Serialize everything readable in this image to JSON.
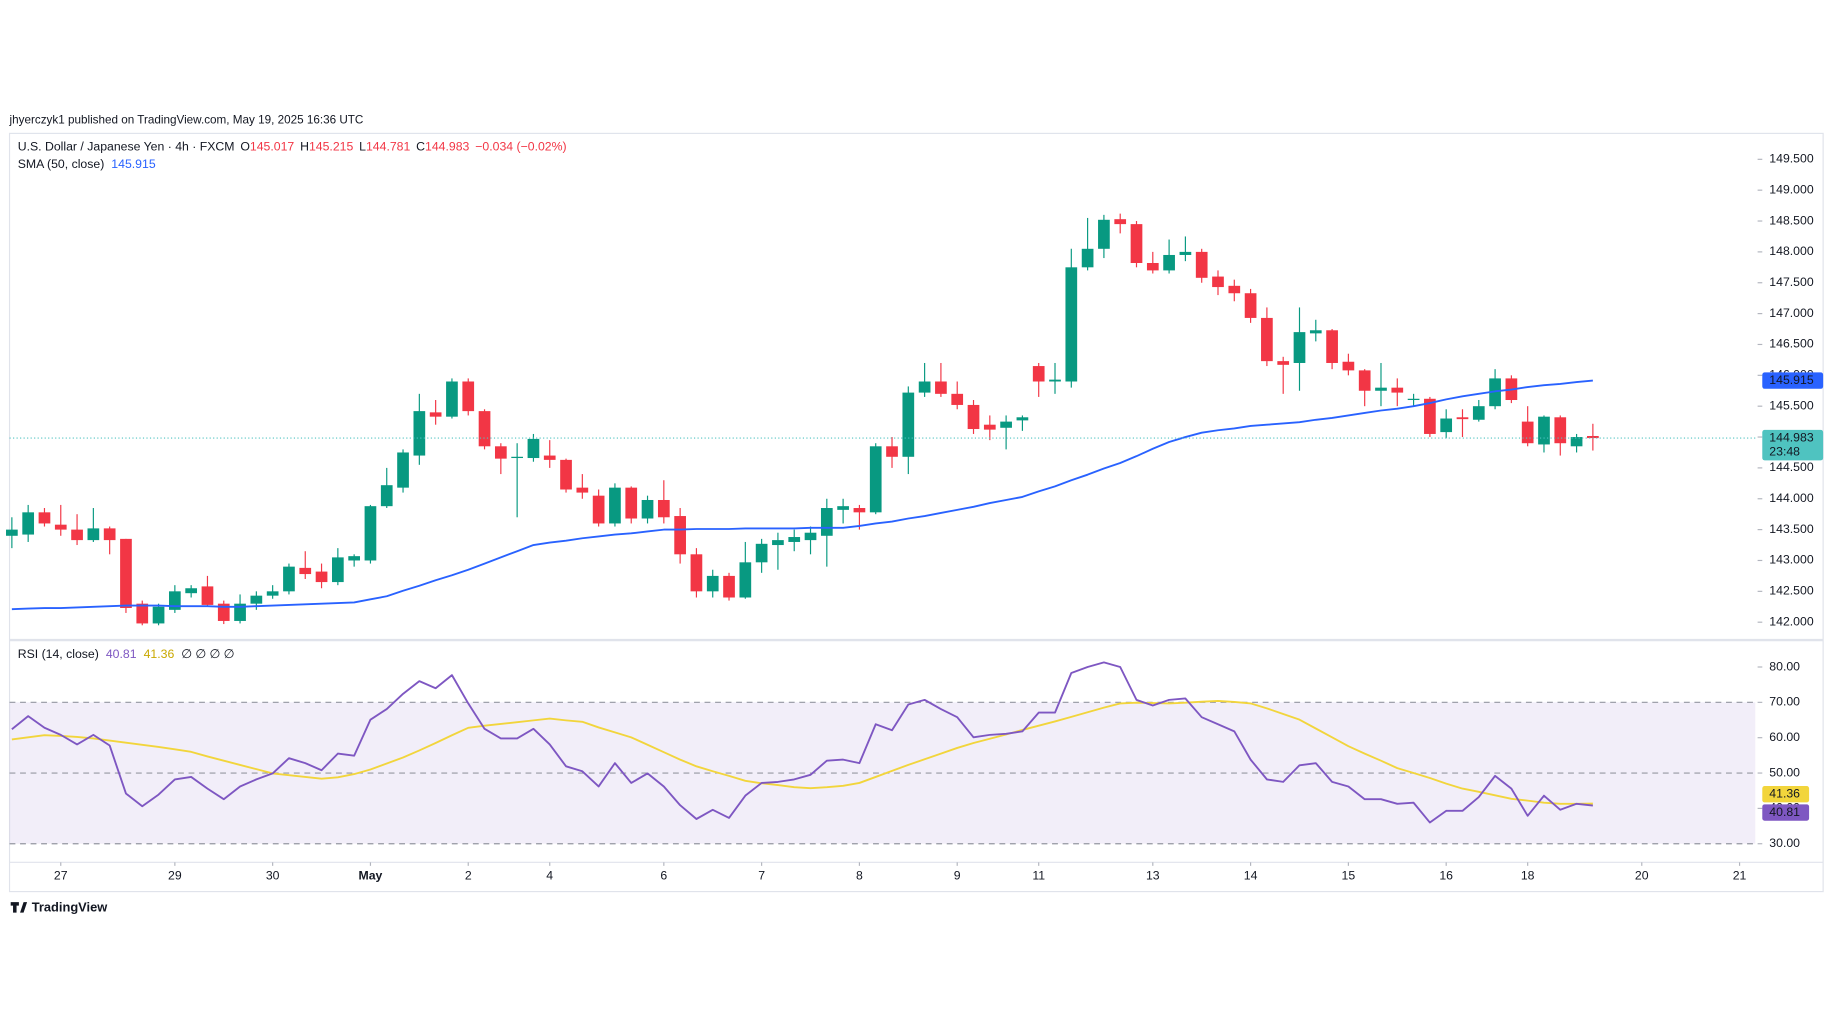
{
  "header": {
    "published": "jhyerczyk1 published on TradingView.com, May 19, 2025 16:36 UTC"
  },
  "chart_data": [
    {
      "type": "candlestick",
      "title": "U.S. Dollar / Japanese Yen · 4h · FXCM",
      "ohlc_letters": [
        "O",
        "H",
        "L",
        "C"
      ],
      "change": "−0.034 (−0.02%)",
      "up_color": "#089981",
      "down_color": "#f23645",
      "open": [
        143.4,
        143.42,
        143.78,
        143.58,
        143.5,
        143.33,
        143.52,
        143.35,
        142.3,
        141.98,
        142.2,
        142.47,
        142.58,
        142.3,
        142.02,
        142.3,
        142.43,
        142.5,
        142.88,
        142.82,
        142.65,
        143.0,
        143.0,
        143.88,
        144.18,
        144.7,
        145.4,
        145.33,
        145.9,
        145.42,
        144.85,
        144.66,
        144.66,
        144.7,
        144.63,
        144.18,
        144.05,
        143.6,
        144.18,
        143.68,
        143.98,
        143.72,
        143.1,
        142.5,
        142.75,
        142.4,
        142.97,
        143.25,
        143.3,
        143.33,
        143.4,
        143.82,
        143.85,
        143.78,
        144.85,
        144.68,
        145.72,
        145.9,
        145.7,
        145.52,
        145.2,
        145.15,
        145.27,
        146.15,
        145.9,
        145.9,
        147.75,
        148.05,
        148.53,
        148.45,
        147.82,
        147.7,
        147.95,
        148.0,
        147.6,
        147.45,
        147.33,
        146.93,
        146.23,
        146.2,
        146.68,
        146.73,
        146.22,
        146.08,
        145.75,
        145.8,
        145.6,
        145.62,
        145.08,
        145.32,
        145.28,
        145.5,
        145.95,
        145.25,
        144.88,
        145.32,
        144.85,
        145.017
      ],
      "high": [
        143.7,
        143.9,
        143.85,
        143.9,
        143.75,
        143.85,
        143.55,
        143.35,
        142.35,
        142.3,
        142.6,
        142.6,
        142.75,
        142.35,
        142.45,
        142.5,
        142.6,
        142.95,
        143.15,
        142.95,
        143.2,
        143.1,
        143.9,
        144.5,
        144.8,
        145.7,
        145.6,
        145.95,
        145.95,
        145.45,
        144.9,
        144.9,
        145.05,
        144.95,
        144.65,
        144.4,
        144.15,
        144.25,
        144.2,
        144.05,
        144.3,
        143.85,
        143.2,
        142.85,
        142.8,
        143.3,
        143.35,
        143.45,
        143.5,
        143.55,
        144.0,
        144.0,
        143.9,
        144.9,
        145.0,
        145.82,
        146.2,
        146.2,
        145.9,
        145.6,
        145.35,
        145.35,
        145.35,
        146.2,
        146.2,
        148.05,
        148.55,
        148.6,
        148.62,
        148.5,
        148.0,
        148.2,
        148.25,
        148.05,
        147.7,
        147.55,
        147.4,
        147.1,
        146.3,
        147.1,
        146.9,
        146.75,
        146.35,
        146.1,
        146.2,
        145.95,
        145.7,
        145.65,
        145.45,
        145.45,
        145.6,
        146.1,
        146.0,
        145.5,
        145.35,
        145.35,
        145.05,
        145.215
      ],
      "low": [
        143.2,
        143.3,
        143.55,
        143.4,
        143.25,
        143.3,
        143.1,
        142.15,
        141.95,
        141.95,
        142.15,
        142.4,
        142.25,
        141.97,
        141.98,
        142.2,
        142.38,
        142.45,
        142.7,
        142.55,
        142.6,
        142.9,
        142.95,
        143.85,
        144.1,
        144.55,
        145.2,
        145.3,
        145.35,
        144.8,
        144.4,
        143.7,
        144.6,
        144.5,
        144.1,
        144.0,
        143.55,
        143.55,
        143.6,
        143.6,
        143.6,
        142.95,
        142.4,
        142.4,
        142.35,
        142.38,
        142.8,
        142.85,
        143.15,
        143.1,
        142.9,
        143.6,
        143.5,
        143.75,
        144.5,
        144.4,
        145.65,
        145.65,
        145.45,
        145.05,
        144.95,
        144.8,
        145.1,
        145.65,
        145.7,
        145.8,
        147.7,
        147.9,
        148.3,
        147.75,
        147.65,
        147.65,
        147.85,
        147.5,
        147.3,
        147.2,
        146.85,
        146.15,
        145.7,
        145.75,
        146.55,
        146.1,
        146.0,
        145.5,
        145.5,
        145.5,
        145.5,
        145.0,
        144.98,
        145.0,
        145.25,
        145.45,
        145.55,
        144.85,
        144.75,
        144.7,
        144.75,
        144.781
      ],
      "close": [
        143.5,
        143.78,
        143.6,
        143.5,
        143.33,
        143.52,
        143.33,
        142.23,
        141.98,
        142.25,
        142.5,
        142.55,
        142.28,
        142.02,
        142.3,
        142.43,
        142.5,
        142.9,
        142.78,
        142.65,
        143.05,
        143.07,
        143.88,
        144.22,
        144.75,
        145.42,
        145.33,
        145.9,
        145.42,
        144.85,
        144.65,
        144.68,
        144.97,
        144.63,
        144.15,
        144.1,
        143.6,
        144.18,
        143.68,
        143.98,
        143.7,
        143.1,
        142.5,
        142.75,
        142.4,
        142.97,
        143.27,
        143.33,
        143.38,
        143.45,
        143.85,
        143.88,
        143.78,
        144.85,
        144.68,
        145.72,
        145.9,
        145.7,
        145.52,
        145.13,
        145.12,
        145.25,
        145.32,
        145.9,
        145.93,
        147.75,
        148.05,
        148.52,
        148.45,
        147.82,
        147.7,
        147.95,
        148.0,
        147.58,
        147.43,
        147.33,
        146.93,
        146.23,
        146.17,
        146.7,
        146.73,
        146.2,
        146.08,
        145.75,
        145.8,
        145.72,
        145.62,
        145.05,
        145.3,
        145.29,
        145.5,
        145.95,
        145.6,
        144.9,
        145.33,
        144.9,
        145.0,
        144.983
      ],
      "series": [
        {
          "name": "SMA (50, close)",
          "color": "#2962ff",
          "values": [
            142.21,
            142.22,
            142.23,
            142.23,
            142.24,
            142.25,
            142.26,
            142.27,
            142.27,
            142.27,
            142.26,
            142.26,
            142.26,
            142.25,
            142.25,
            142.26,
            142.27,
            142.28,
            142.29,
            142.3,
            142.31,
            142.32,
            142.37,
            142.42,
            142.51,
            142.59,
            142.68,
            142.76,
            142.85,
            142.95,
            143.05,
            143.15,
            143.25,
            143.29,
            143.32,
            143.36,
            143.39,
            143.42,
            143.44,
            143.47,
            143.5,
            143.5,
            143.51,
            143.51,
            143.51,
            143.52,
            143.52,
            143.52,
            143.52,
            143.53,
            143.53,
            143.53,
            143.56,
            143.6,
            143.63,
            143.68,
            143.72,
            143.77,
            143.82,
            143.87,
            143.93,
            143.98,
            144.03,
            144.12,
            144.2,
            144.3,
            144.39,
            144.49,
            144.58,
            144.69,
            144.81,
            144.92,
            145.0,
            145.07,
            145.11,
            145.14,
            145.18,
            145.2,
            145.22,
            145.24,
            145.28,
            145.31,
            145.35,
            145.39,
            145.43,
            145.46,
            145.5,
            145.55,
            145.61,
            145.66,
            145.7,
            145.74,
            145.77,
            145.81,
            145.84,
            145.86,
            145.89,
            145.915
          ]
        }
      ],
      "last_price_color": "#4fc3c0",
      "countdown": "23:48",
      "ylim": [
        141.73,
        149.92
      ],
      "yticks": [
        {
          "value": 142,
          "label": "142.000"
        },
        {
          "value": 142.5,
          "label": "142.500"
        },
        {
          "value": 143,
          "label": "143.000"
        },
        {
          "value": 143.5,
          "label": "143.500"
        },
        {
          "value": 144,
          "label": "144.000"
        },
        {
          "value": 144.5,
          "label": "144.500"
        },
        {
          "value": 145,
          "label": "145.000"
        },
        {
          "value": 145.5,
          "label": "145.500"
        },
        {
          "value": 146,
          "label": "146.000"
        },
        {
          "value": 146.5,
          "label": "146.500"
        },
        {
          "value": 147,
          "label": "147.000"
        },
        {
          "value": 147.5,
          "label": "147.500"
        },
        {
          "value": 148,
          "label": "148.000"
        },
        {
          "value": 148.5,
          "label": "148.500"
        },
        {
          "value": 149,
          "label": "149.000"
        },
        {
          "value": 149.5,
          "label": "149.500"
        }
      ],
      "xticks": [
        {
          "value": 3,
          "label": "27"
        },
        {
          "value": 10,
          "label": "29"
        },
        {
          "value": 16,
          "label": "30"
        },
        {
          "value": 22,
          "label": "May"
        },
        {
          "value": 28,
          "label": "2"
        },
        {
          "value": 33,
          "label": "4"
        },
        {
          "value": 40,
          "label": "6"
        },
        {
          "value": 46,
          "label": "7"
        },
        {
          "value": 52,
          "label": "8"
        },
        {
          "value": 58,
          "label": "9"
        },
        {
          "value": 63,
          "label": "11"
        },
        {
          "value": 70,
          "label": "13"
        },
        {
          "value": 76,
          "label": "14"
        },
        {
          "value": 82,
          "label": "15"
        },
        {
          "value": 88,
          "label": "16"
        },
        {
          "value": 93,
          "label": "18"
        },
        {
          "value": 100,
          "label": "20"
        },
        {
          "value": 106,
          "label": "21"
        }
      ]
    },
    {
      "type": "line",
      "title": "RSI (14, close)",
      "extra": "∅ ∅ ∅ ∅",
      "series": [
        {
          "color": "#7e57c2",
          "values": [
            62.4,
            66.1,
            62.8,
            60.8,
            58.1,
            60.8,
            57.8,
            44.2,
            40.6,
            43.9,
            48.2,
            48.9,
            45.6,
            42.6,
            46.2,
            48.2,
            49.9,
            54.2,
            52.8,
            50.8,
            55.5,
            54.9,
            65.1,
            68.1,
            72.4,
            76.0,
            74.0,
            77.7,
            69.7,
            62.5,
            59.8,
            59.8,
            62.5,
            58.1,
            51.9,
            50.5,
            46.2,
            52.8,
            47.2,
            49.9,
            46.2,
            40.9,
            37.0,
            39.6,
            37.3,
            43.6,
            47.2,
            47.5,
            48.2,
            49.5,
            53.5,
            53.8,
            52.8,
            63.8,
            62.1,
            69.4,
            70.7,
            68.1,
            65.8,
            60.1,
            60.8,
            61.1,
            61.8,
            67.1,
            67.1,
            78.3,
            80.0,
            81.3,
            80.0,
            70.7,
            69.1,
            70.7,
            71.1,
            65.8,
            63.8,
            61.8,
            53.8,
            48.2,
            47.5,
            52.2,
            52.8,
            47.5,
            46.2,
            42.6,
            42.6,
            41.3,
            41.6,
            36.0,
            39.3,
            39.3,
            43.2,
            49.2,
            45.6,
            37.9,
            43.6,
            39.6,
            41.3,
            40.81
          ]
        },
        {
          "color": "#f2d53c",
          "values": [
            59.5,
            60.1,
            60.7,
            60.5,
            60.2,
            59.8,
            59.2,
            58.6,
            58.0,
            57.4,
            56.7,
            56.0,
            54.7,
            53.5,
            52.3,
            51.1,
            49.9,
            49.4,
            48.9,
            48.4,
            48.8,
            49.7,
            51.0,
            52.7,
            54.4,
            56.4,
            58.5,
            60.7,
            62.8,
            63.4,
            63.9,
            64.4,
            64.9,
            65.4,
            64.9,
            64.5,
            62.9,
            61.5,
            60.1,
            58.0,
            55.9,
            53.8,
            51.9,
            50.5,
            49.2,
            47.8,
            47.1,
            46.6,
            46.0,
            45.7,
            46.0,
            46.4,
            47.2,
            48.9,
            50.6,
            52.3,
            53.9,
            55.5,
            57.1,
            58.5,
            59.7,
            60.9,
            62.2,
            63.4,
            64.6,
            65.9,
            67.2,
            68.5,
            69.7,
            69.9,
            69.8,
            69.7,
            69.9,
            70.2,
            70.4,
            70.1,
            69.7,
            68.3,
            66.7,
            65.1,
            62.6,
            60.1,
            57.6,
            55.5,
            53.5,
            51.4,
            50.0,
            48.6,
            47.0,
            45.6,
            44.7,
            43.7,
            42.7,
            42.2,
            41.6,
            41.3,
            41.3,
            41.36
          ]
        }
      ],
      "band": [
        30,
        70
      ],
      "midline": 50,
      "ylim": [
        25.4,
        87.3
      ],
      "yticks": [
        {
          "value": 30,
          "label": "30.00"
        },
        {
          "value": 40,
          "label": "40.00"
        },
        {
          "value": 50,
          "label": "50.00"
        },
        {
          "value": 60,
          "label": "60.00"
        },
        {
          "value": 70,
          "label": "70.00"
        },
        {
          "value": 80,
          "label": "80.00"
        }
      ]
    }
  ],
  "footer": {
    "brand": "TradingView"
  }
}
